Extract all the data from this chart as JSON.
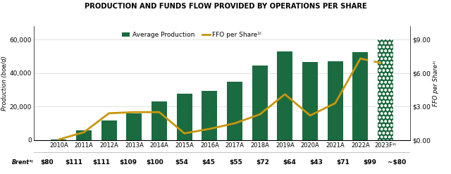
{
  "title": "PRODUCTION AND FUNDS FLOW PROVIDED BY OPERATIONS PER SHARE",
  "years": [
    "2010A",
    "2011A",
    "2012A",
    "2013A",
    "2014A",
    "2015A",
    "2016A",
    "2017A",
    "2018A",
    "2019A",
    "2020A",
    "2021A",
    "2022A",
    "2023F²⁽"
  ],
  "production": [
    500,
    6000,
    11500,
    16000,
    23000,
    27500,
    29500,
    35000,
    44500,
    53000,
    46500,
    47000,
    52500,
    60000
  ],
  "ffo_per_share": [
    0.05,
    0.7,
    2.4,
    2.5,
    2.5,
    0.6,
    1.0,
    1.5,
    2.3,
    4.1,
    2.2,
    3.3,
    7.3,
    6.8
  ],
  "brent_labels": [
    "$80",
    "$111",
    "$111",
    "$109",
    "$100",
    "$54",
    "$45",
    "$55",
    "$72",
    "$64",
    "$43",
    "$71",
    "$99",
    "~$80"
  ],
  "bar_color": "#1b6b40",
  "line_color": "#c8960c",
  "ylabel_left": "Production (boe/d)",
  "ylabel_right": "FFO per Share¹⁽",
  "ylim_left": [
    0,
    68000
  ],
  "ylim_right": [
    0,
    10.2
  ],
  "yticks_left": [
    0,
    20000,
    40000,
    60000
  ],
  "yticks_right": [
    0.0,
    3.0,
    6.0,
    9.0
  ],
  "legend_avg_prod": "Average Production",
  "legend_ffo": "FFO per Share¹⁽",
  "brent_label": "Brent³⁽",
  "bg_color": "#ffffff",
  "footer_bg": "#e8e8e0"
}
